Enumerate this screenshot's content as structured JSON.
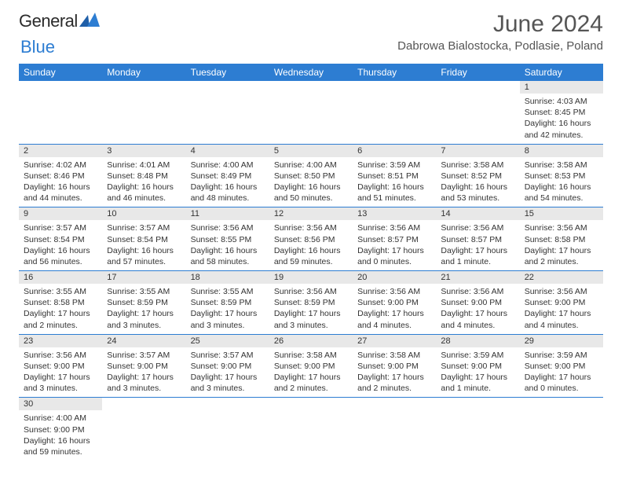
{
  "logo": {
    "part1": "General",
    "part2": "Blue"
  },
  "title": "June 2024",
  "location": "Dabrowa Bialostocka, Podlasie, Poland",
  "colors": {
    "header_bg": "#2d7dd2",
    "header_fg": "#ffffff",
    "daynum_bg": "#e8e8e8",
    "border": "#2d7dd2",
    "logo_accent": "#2d7dd2",
    "text": "#333333"
  },
  "weekdays": [
    "Sunday",
    "Monday",
    "Tuesday",
    "Wednesday",
    "Thursday",
    "Friday",
    "Saturday"
  ],
  "first_weekday_index": 6,
  "days_in_month": 30,
  "days": {
    "1": {
      "sunrise": "4:03 AM",
      "sunset": "8:45 PM",
      "daylight": "16 hours and 42 minutes."
    },
    "2": {
      "sunrise": "4:02 AM",
      "sunset": "8:46 PM",
      "daylight": "16 hours and 44 minutes."
    },
    "3": {
      "sunrise": "4:01 AM",
      "sunset": "8:48 PM",
      "daylight": "16 hours and 46 minutes."
    },
    "4": {
      "sunrise": "4:00 AM",
      "sunset": "8:49 PM",
      "daylight": "16 hours and 48 minutes."
    },
    "5": {
      "sunrise": "4:00 AM",
      "sunset": "8:50 PM",
      "daylight": "16 hours and 50 minutes."
    },
    "6": {
      "sunrise": "3:59 AM",
      "sunset": "8:51 PM",
      "daylight": "16 hours and 51 minutes."
    },
    "7": {
      "sunrise": "3:58 AM",
      "sunset": "8:52 PM",
      "daylight": "16 hours and 53 minutes."
    },
    "8": {
      "sunrise": "3:58 AM",
      "sunset": "8:53 PM",
      "daylight": "16 hours and 54 minutes."
    },
    "9": {
      "sunrise": "3:57 AM",
      "sunset": "8:54 PM",
      "daylight": "16 hours and 56 minutes."
    },
    "10": {
      "sunrise": "3:57 AM",
      "sunset": "8:54 PM",
      "daylight": "16 hours and 57 minutes."
    },
    "11": {
      "sunrise": "3:56 AM",
      "sunset": "8:55 PM",
      "daylight": "16 hours and 58 minutes."
    },
    "12": {
      "sunrise": "3:56 AM",
      "sunset": "8:56 PM",
      "daylight": "16 hours and 59 minutes."
    },
    "13": {
      "sunrise": "3:56 AM",
      "sunset": "8:57 PM",
      "daylight": "17 hours and 0 minutes."
    },
    "14": {
      "sunrise": "3:56 AM",
      "sunset": "8:57 PM",
      "daylight": "17 hours and 1 minute."
    },
    "15": {
      "sunrise": "3:56 AM",
      "sunset": "8:58 PM",
      "daylight": "17 hours and 2 minutes."
    },
    "16": {
      "sunrise": "3:55 AM",
      "sunset": "8:58 PM",
      "daylight": "17 hours and 2 minutes."
    },
    "17": {
      "sunrise": "3:55 AM",
      "sunset": "8:59 PM",
      "daylight": "17 hours and 3 minutes."
    },
    "18": {
      "sunrise": "3:55 AM",
      "sunset": "8:59 PM",
      "daylight": "17 hours and 3 minutes."
    },
    "19": {
      "sunrise": "3:56 AM",
      "sunset": "8:59 PM",
      "daylight": "17 hours and 3 minutes."
    },
    "20": {
      "sunrise": "3:56 AM",
      "sunset": "9:00 PM",
      "daylight": "17 hours and 4 minutes."
    },
    "21": {
      "sunrise": "3:56 AM",
      "sunset": "9:00 PM",
      "daylight": "17 hours and 4 minutes."
    },
    "22": {
      "sunrise": "3:56 AM",
      "sunset": "9:00 PM",
      "daylight": "17 hours and 4 minutes."
    },
    "23": {
      "sunrise": "3:56 AM",
      "sunset": "9:00 PM",
      "daylight": "17 hours and 3 minutes."
    },
    "24": {
      "sunrise": "3:57 AM",
      "sunset": "9:00 PM",
      "daylight": "17 hours and 3 minutes."
    },
    "25": {
      "sunrise": "3:57 AM",
      "sunset": "9:00 PM",
      "daylight": "17 hours and 3 minutes."
    },
    "26": {
      "sunrise": "3:58 AM",
      "sunset": "9:00 PM",
      "daylight": "17 hours and 2 minutes."
    },
    "27": {
      "sunrise": "3:58 AM",
      "sunset": "9:00 PM",
      "daylight": "17 hours and 2 minutes."
    },
    "28": {
      "sunrise": "3:59 AM",
      "sunset": "9:00 PM",
      "daylight": "17 hours and 1 minute."
    },
    "29": {
      "sunrise": "3:59 AM",
      "sunset": "9:00 PM",
      "daylight": "17 hours and 0 minutes."
    },
    "30": {
      "sunrise": "4:00 AM",
      "sunset": "9:00 PM",
      "daylight": "16 hours and 59 minutes."
    }
  },
  "labels": {
    "sunrise": "Sunrise: ",
    "sunset": "Sunset: ",
    "daylight": "Daylight: "
  }
}
